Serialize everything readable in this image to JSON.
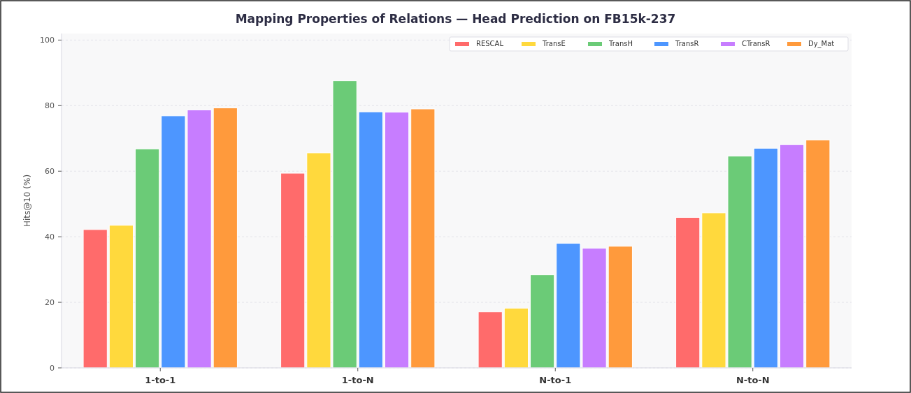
{
  "chart_data": {
    "type": "bar",
    "title": "Mapping Properties of Relations — Head Prediction on FB15k-237",
    "ylabel": "Hits@10 (%)",
    "categories": [
      "1-to-1",
      "1-to-N",
      "N-to-1",
      "N-to-N"
    ],
    "series": [
      {
        "name": "RESCAL",
        "color": "#ff6b6b",
        "values": [
          42.2,
          59.4,
          17.1,
          45.9
        ]
      },
      {
        "name": "TransE",
        "color": "#ffd93d",
        "values": [
          43.5,
          65.6,
          18.2,
          47.3
        ]
      },
      {
        "name": "TransH",
        "color": "#6bcb77",
        "values": [
          66.8,
          87.6,
          28.4,
          64.6
        ]
      },
      {
        "name": "TransR",
        "color": "#4d96ff",
        "values": [
          76.9,
          78.1,
          38.0,
          67.0
        ]
      },
      {
        "name": "CTransR",
        "color": "#c77dff",
        "values": [
          78.7,
          78.0,
          36.5,
          68.1
        ]
      },
      {
        "name": "Dy_Mat",
        "color": "#ff9a3c",
        "values": [
          79.3,
          79.0,
          37.1,
          69.5
        ]
      }
    ],
    "ylim": [
      0,
      102
    ],
    "yticks": [
      0,
      20,
      40,
      60,
      80,
      100
    ],
    "grid": "y",
    "legend": "top right"
  }
}
